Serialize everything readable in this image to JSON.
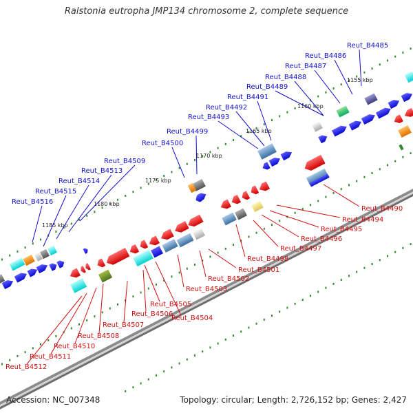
{
  "title": "Ralstonia eutropha JMP134 chromosome 2, complete sequence",
  "accession": "Accession: NC_007348",
  "summary": "Topology: circular; Length: 2,726,152 bp; Genes: 2,427",
  "colors": {
    "forward_label": "#1010c8",
    "reverse_label": "#d01010",
    "backbone": "#8c8c8c",
    "tick": "#2e8b2e"
  },
  "scale_labels": [
    "1155 kbp",
    "1160 kbp",
    "1165 kbp",
    "1170 kbp",
    "1175 kbp",
    "1180 kbp",
    "1185 kbp"
  ],
  "forward_labels": [
    "Reut_B4485",
    "Reut_B4486",
    "Reut_B4487",
    "Reut_B4488",
    "Reut_B4489",
    "Reut_B4491",
    "Reut_B4492",
    "Reut_B4493",
    "Reut_B4499",
    "Reut_B4500",
    "Reut_B4509",
    "Reut_B4513",
    "Reut_B4514",
    "Reut_B4515",
    "Reut_B4516"
  ],
  "reverse_labels": [
    "Reut_B4490",
    "Reut_B4494",
    "Reut_B4495",
    "Reut_B4496",
    "Reut_B4497",
    "Reut_B4498",
    "Reut_B4501",
    "Reut_B4502",
    "Reut_B4503",
    "Reut_B4504",
    "Reut_B4505",
    "Reut_B4506",
    "Reut_B4507",
    "Reut_B4508",
    "Reut_B4510",
    "Reut_B4511",
    "Reut_B4512"
  ]
}
